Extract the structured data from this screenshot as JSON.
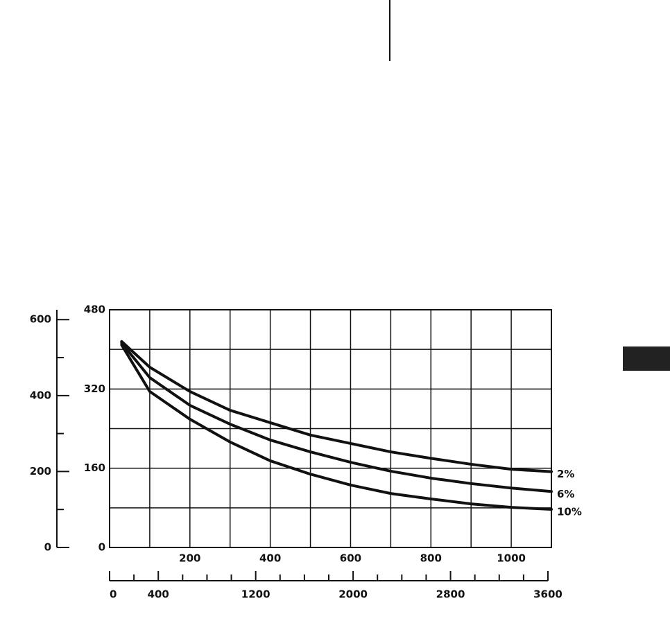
{
  "chart_data": {
    "type": "line",
    "x": [
      30,
      100,
      200,
      300,
      400,
      500,
      600,
      700,
      800,
      900,
      1000,
      1100
    ],
    "series": [
      {
        "name": "2%",
        "color": "#111111",
        "values": [
          416,
          364,
          315,
          277,
          252,
          227,
          210,
          193,
          180,
          168,
          158,
          153
        ]
      },
      {
        "name": "6%",
        "color": "#111111",
        "values": [
          413,
          343,
          287,
          249,
          217,
          193,
          172,
          154,
          140,
          129,
          120,
          113
        ]
      },
      {
        "name": "10%",
        "color": "#111111",
        "values": [
          409,
          315,
          259,
          213,
          175,
          148,
          126,
          109,
          98,
          88,
          81,
          77
        ]
      }
    ],
    "xlim": [
      0,
      1100
    ],
    "xticks": [
      200,
      400,
      600,
      800,
      1000
    ],
    "xminor": [
      100,
      300,
      500,
      700,
      900
    ],
    "ylim": [
      0,
      480
    ],
    "yticks": [
      0,
      160,
      320,
      480
    ],
    "yminor": [
      80,
      240,
      400
    ],
    "y2lim": [
      0,
      626
    ],
    "y2ticks": [
      0,
      200,
      400,
      600
    ],
    "y2minor": [
      100,
      300,
      500
    ],
    "x2lim": [
      0,
      3600
    ],
    "x2ticks": [
      0,
      400,
      1200,
      2000,
      2800,
      3600
    ],
    "x2minor": [
      200,
      600,
      800,
      1000,
      1400,
      1600,
      1800,
      2200,
      2400,
      2600,
      3000,
      3200,
      3400
    ],
    "grid": true
  }
}
